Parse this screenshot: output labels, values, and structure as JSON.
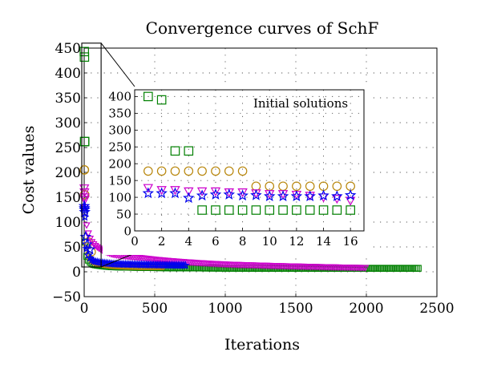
{
  "chart_data": [
    {
      "id": "main",
      "type": "scatter",
      "title": "Convergence curves of SchF",
      "xlabel": "Iterations",
      "ylabel": "Cost values",
      "xlim": [
        0,
        2500
      ],
      "ylim": [
        -50,
        450
      ],
      "xticks": [
        0,
        500,
        1000,
        1500,
        2000,
        2500
      ],
      "yticks": [
        -50,
        0,
        50,
        100,
        150,
        200,
        250,
        300,
        350,
        400,
        450
      ],
      "xtick_labels": [
        "0",
        "500",
        "1000",
        "1500",
        "2000",
        "2500"
      ],
      "ytick_labels": [
        "−50",
        "0",
        "50",
        "100",
        "150",
        "200",
        "250",
        "300",
        "350",
        "400",
        "450"
      ],
      "grid": true,
      "series": [
        {
          "color": "#008000",
          "marker": "square",
          "initial_points": [
            [
              1,
              443
            ],
            [
              2,
              432
            ],
            [
              3,
              262
            ],
            [
              4,
              262
            ]
          ],
          "curve": [
            [
              5,
              60
            ],
            [
              20,
              28
            ],
            [
              60,
              15
            ],
            [
              200,
              10
            ],
            [
              600,
              8
            ],
            [
              1200,
              7
            ],
            [
              2380,
              7
            ]
          ]
        },
        {
          "color": "#b8860b",
          "marker": "circle",
          "initial_points": [
            [
              1,
              205
            ],
            [
              2,
              205
            ],
            [
              3,
              155
            ],
            [
              4,
              155
            ],
            [
              30,
              60
            ],
            [
              50,
              40
            ]
          ],
          "curve": [
            [
              5,
              120
            ],
            [
              20,
              45
            ],
            [
              60,
              20
            ],
            [
              200,
              12
            ],
            [
              400,
              10
            ],
            [
              560,
              10
            ]
          ]
        },
        {
          "color": "#cc00cc",
          "marker": "triangle-down",
          "initial_points": [
            [
              1,
              168
            ],
            [
              2,
              160
            ],
            [
              3,
              150
            ],
            [
              4,
              145
            ]
          ],
          "curve": [
            [
              5,
              130
            ],
            [
              20,
              90
            ],
            [
              50,
              62
            ],
            [
              100,
              48
            ],
            [
              200,
              35
            ],
            [
              400,
              28
            ],
            [
              700,
              20
            ],
            [
              1000,
              15
            ],
            [
              1500,
              11
            ],
            [
              2000,
              8
            ]
          ]
        },
        {
          "color": "#0000ee",
          "marker": "star",
          "initial_points": [
            [
              1,
              132
            ],
            [
              2,
              128
            ],
            [
              3,
              125
            ],
            [
              4,
              120
            ],
            [
              10,
              70
            ],
            [
              20,
              55
            ],
            [
              40,
              45
            ]
          ],
          "curve": [
            [
              5,
              110
            ],
            [
              20,
              40
            ],
            [
              60,
              22
            ],
            [
              200,
              16
            ],
            [
              500,
              14
            ],
            [
              730,
              13
            ]
          ]
        }
      ],
      "zoom_box": {
        "x": [
          0,
          120
        ],
        "y": [
          0,
          460
        ]
      }
    },
    {
      "id": "inset",
      "type": "scatter",
      "annotation": "Initial solutions",
      "xlim": [
        0,
        17
      ],
      "ylim": [
        0,
        420
      ],
      "xticks": [
        0,
        2,
        4,
        6,
        8,
        10,
        12,
        14,
        16
      ],
      "yticks": [
        0,
        50,
        100,
        150,
        200,
        250,
        300,
        350,
        400
      ],
      "xtick_labels": [
        "0",
        "2",
        "4",
        "6",
        "8",
        "10",
        "12",
        "14",
        "16"
      ],
      "ytick_labels": [
        "0",
        "50",
        "100",
        "150",
        "200",
        "250",
        "300",
        "350",
        "400"
      ],
      "grid": true,
      "series": [
        {
          "color": "#008000",
          "marker": "square",
          "x": [
            1,
            2,
            3,
            4,
            5,
            6,
            7,
            8,
            9,
            10,
            11,
            12,
            13,
            14,
            15,
            16
          ],
          "y": [
            400,
            390,
            238,
            238,
            62,
            62,
            62,
            62,
            62,
            62,
            62,
            62,
            62,
            62,
            62,
            62
          ]
        },
        {
          "color": "#b8860b",
          "marker": "circle",
          "x": [
            1,
            2,
            3,
            4,
            5,
            6,
            7,
            8,
            9,
            10,
            11,
            12,
            13,
            14,
            15,
            16
          ],
          "y": [
            178,
            178,
            178,
            178,
            178,
            178,
            178,
            178,
            133,
            133,
            133,
            133,
            133,
            133,
            133,
            133
          ]
        },
        {
          "color": "#cc00cc",
          "marker": "triangle-down",
          "x": [
            1,
            2,
            3,
            4,
            5,
            6,
            7,
            8,
            9,
            10,
            11,
            12,
            13,
            14,
            15,
            16
          ],
          "y": [
            128,
            122,
            122,
            118,
            118,
            118,
            115,
            115,
            112,
            110,
            110,
            108,
            105,
            100,
            96,
            90
          ]
        },
        {
          "color": "#0000ee",
          "marker": "star",
          "x": [
            1,
            2,
            3,
            4,
            5,
            6,
            7,
            8,
            9,
            10,
            11,
            12,
            13,
            14,
            15,
            16
          ],
          "y": [
            112,
            112,
            112,
            98,
            105,
            108,
            108,
            105,
            106,
            103,
            103,
            103,
            103,
            105,
            103,
            106
          ]
        }
      ]
    }
  ]
}
